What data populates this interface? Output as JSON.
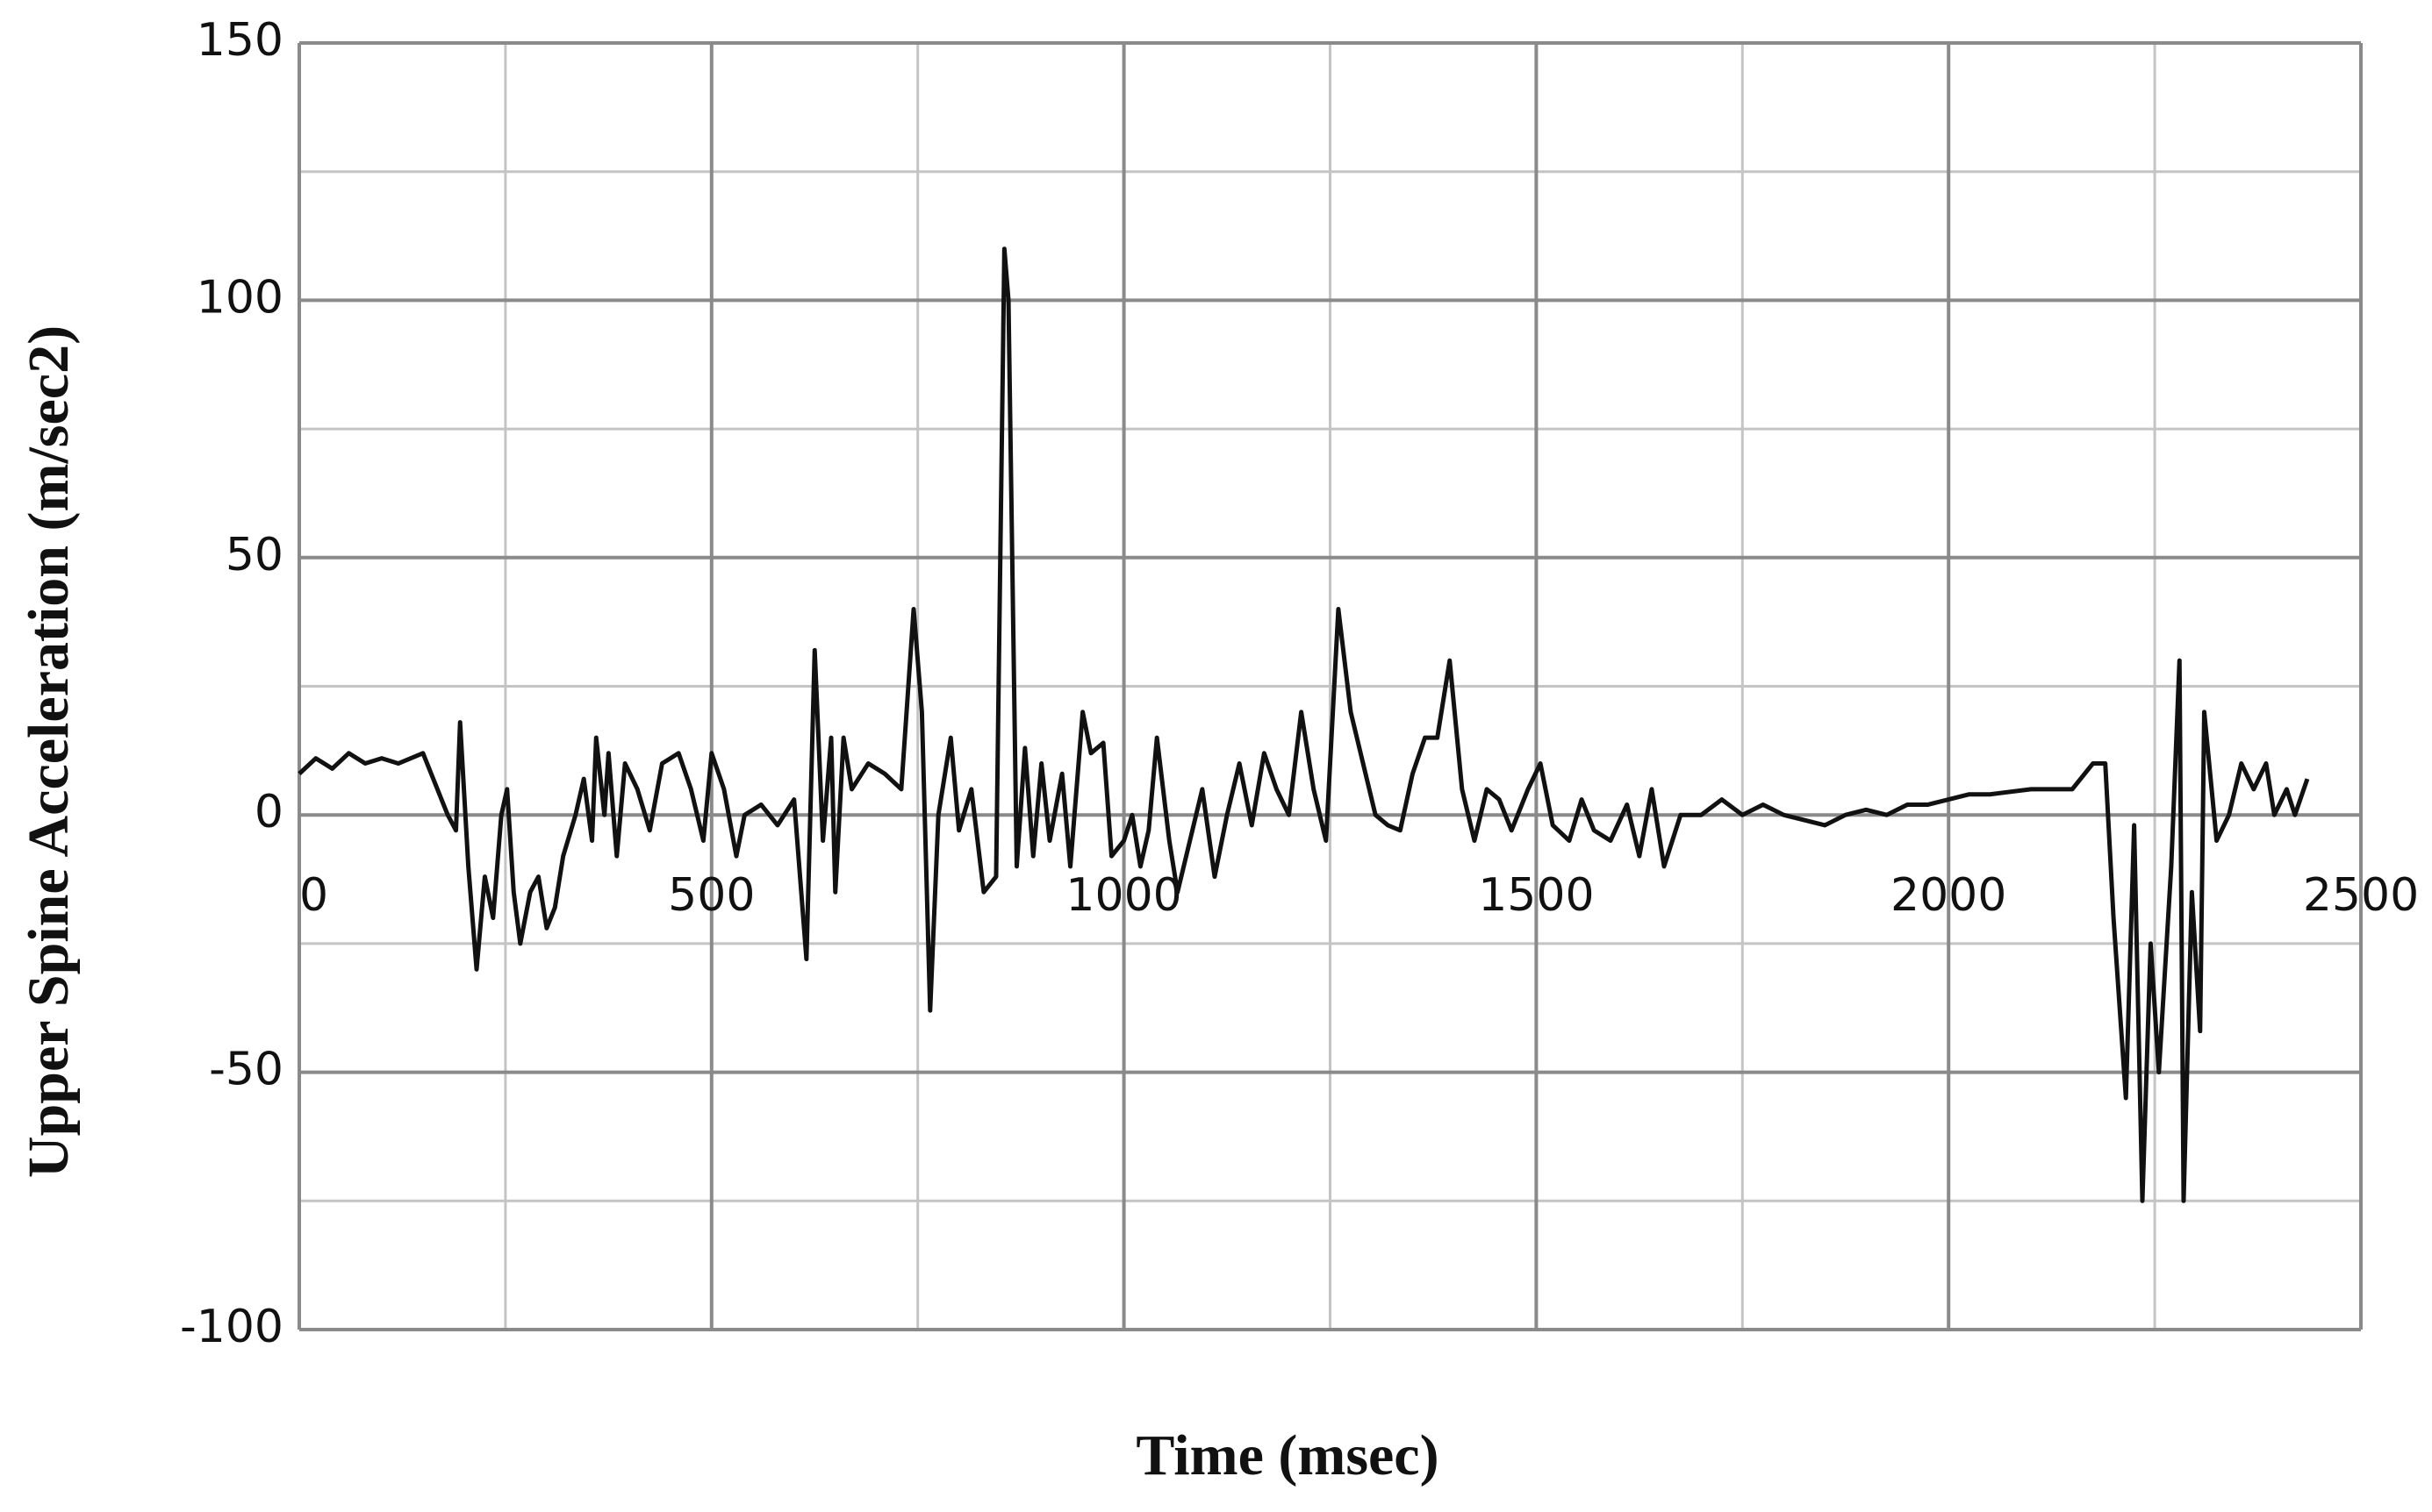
{
  "chart_data": {
    "type": "line",
    "xlabel": "Time (msec)",
    "ylabel": "Upper Spine Acceleration (m/sec2)",
    "xlim": [
      0,
      2500
    ],
    "ylim": [
      -100,
      150
    ],
    "xticks": [
      0,
      500,
      1000,
      1500,
      2000,
      2500
    ],
    "yticks": [
      -100,
      -50,
      0,
      50,
      100,
      150
    ],
    "x_minor_grid": [
      250,
      750,
      1250,
      1750,
      2250
    ],
    "y_minor_grid": [
      -75,
      -25,
      25,
      75,
      125
    ],
    "grid": true,
    "x": [
      0,
      20,
      40,
      60,
      80,
      100,
      120,
      150,
      180,
      190,
      195,
      205,
      215,
      225,
      235,
      245,
      252,
      260,
      268,
      280,
      290,
      300,
      310,
      320,
      335,
      345,
      355,
      360,
      370,
      375,
      385,
      395,
      410,
      425,
      440,
      460,
      475,
      490,
      500,
      515,
      530,
      540,
      560,
      580,
      600,
      615,
      625,
      635,
      645,
      650,
      660,
      670,
      690,
      710,
      730,
      745,
      755,
      765,
      775,
      790,
      800,
      815,
      830,
      845,
      855,
      860,
      870,
      880,
      890,
      900,
      910,
      925,
      935,
      950,
      960,
      975,
      985,
      1000,
      1010,
      1020,
      1030,
      1040,
      1055,
      1065,
      1080,
      1095,
      1110,
      1125,
      1140,
      1155,
      1170,
      1185,
      1200,
      1215,
      1230,
      1245,
      1260,
      1275,
      1290,
      1305,
      1320,
      1335,
      1350,
      1365,
      1380,
      1395,
      1410,
      1425,
      1440,
      1455,
      1470,
      1490,
      1505,
      1520,
      1540,
      1555,
      1570,
      1590,
      1610,
      1625,
      1640,
      1655,
      1675,
      1700,
      1725,
      1750,
      1775,
      1800,
      1825,
      1850,
      1875,
      1900,
      1925,
      1950,
      1975,
      2000,
      2025,
      2050,
      2100,
      2150,
      2175,
      2190,
      2200,
      2215,
      2225,
      2235,
      2245,
      2255,
      2270,
      2280,
      2285,
      2295,
      2305,
      2310,
      2325,
      2340,
      2355,
      2370,
      2385,
      2395,
      2410,
      2420,
      2435
    ],
    "series": [
      {
        "color": "#111111",
        "values": [
          8,
          11,
          9,
          12,
          10,
          11,
          10,
          12,
          0,
          -3,
          18,
          -10,
          -30,
          -12,
          -20,
          0,
          5,
          -15,
          -25,
          -15,
          -12,
          -22,
          -18,
          -8,
          0,
          7,
          -5,
          15,
          0,
          12,
          -8,
          10,
          5,
          -3,
          10,
          12,
          5,
          -5,
          12,
          5,
          -8,
          0,
          2,
          -2,
          3,
          -28,
          32,
          -5,
          15,
          -15,
          15,
          5,
          10,
          8,
          5,
          40,
          20,
          -38,
          0,
          15,
          -3,
          5,
          -15,
          -12,
          110,
          100,
          -10,
          13,
          -8,
          10,
          -5,
          8,
          -10,
          20,
          12,
          14,
          -8,
          -5,
          0,
          -10,
          -3,
          15,
          -5,
          -15,
          -5,
          5,
          -12,
          0,
          10,
          -2,
          12,
          5,
          0,
          20,
          5,
          -5,
          40,
          20,
          10,
          0,
          -2,
          -3,
          8,
          15,
          15,
          30,
          5,
          -5,
          5,
          3,
          -3,
          5,
          10,
          -2,
          -5,
          3,
          -3,
          -5,
          2,
          -8,
          5,
          -10,
          0,
          0,
          3,
          0,
          2,
          0,
          -1,
          -2,
          0,
          1,
          0,
          2,
          2,
          3,
          4,
          4,
          5,
          5,
          10,
          10,
          -20,
          -55,
          -2,
          -75,
          -25,
          -50,
          -10,
          30,
          -75,
          -15,
          -42,
          20,
          -5,
          0,
          10,
          5,
          10,
          0,
          5,
          0,
          7
        ]
      }
    ]
  }
}
